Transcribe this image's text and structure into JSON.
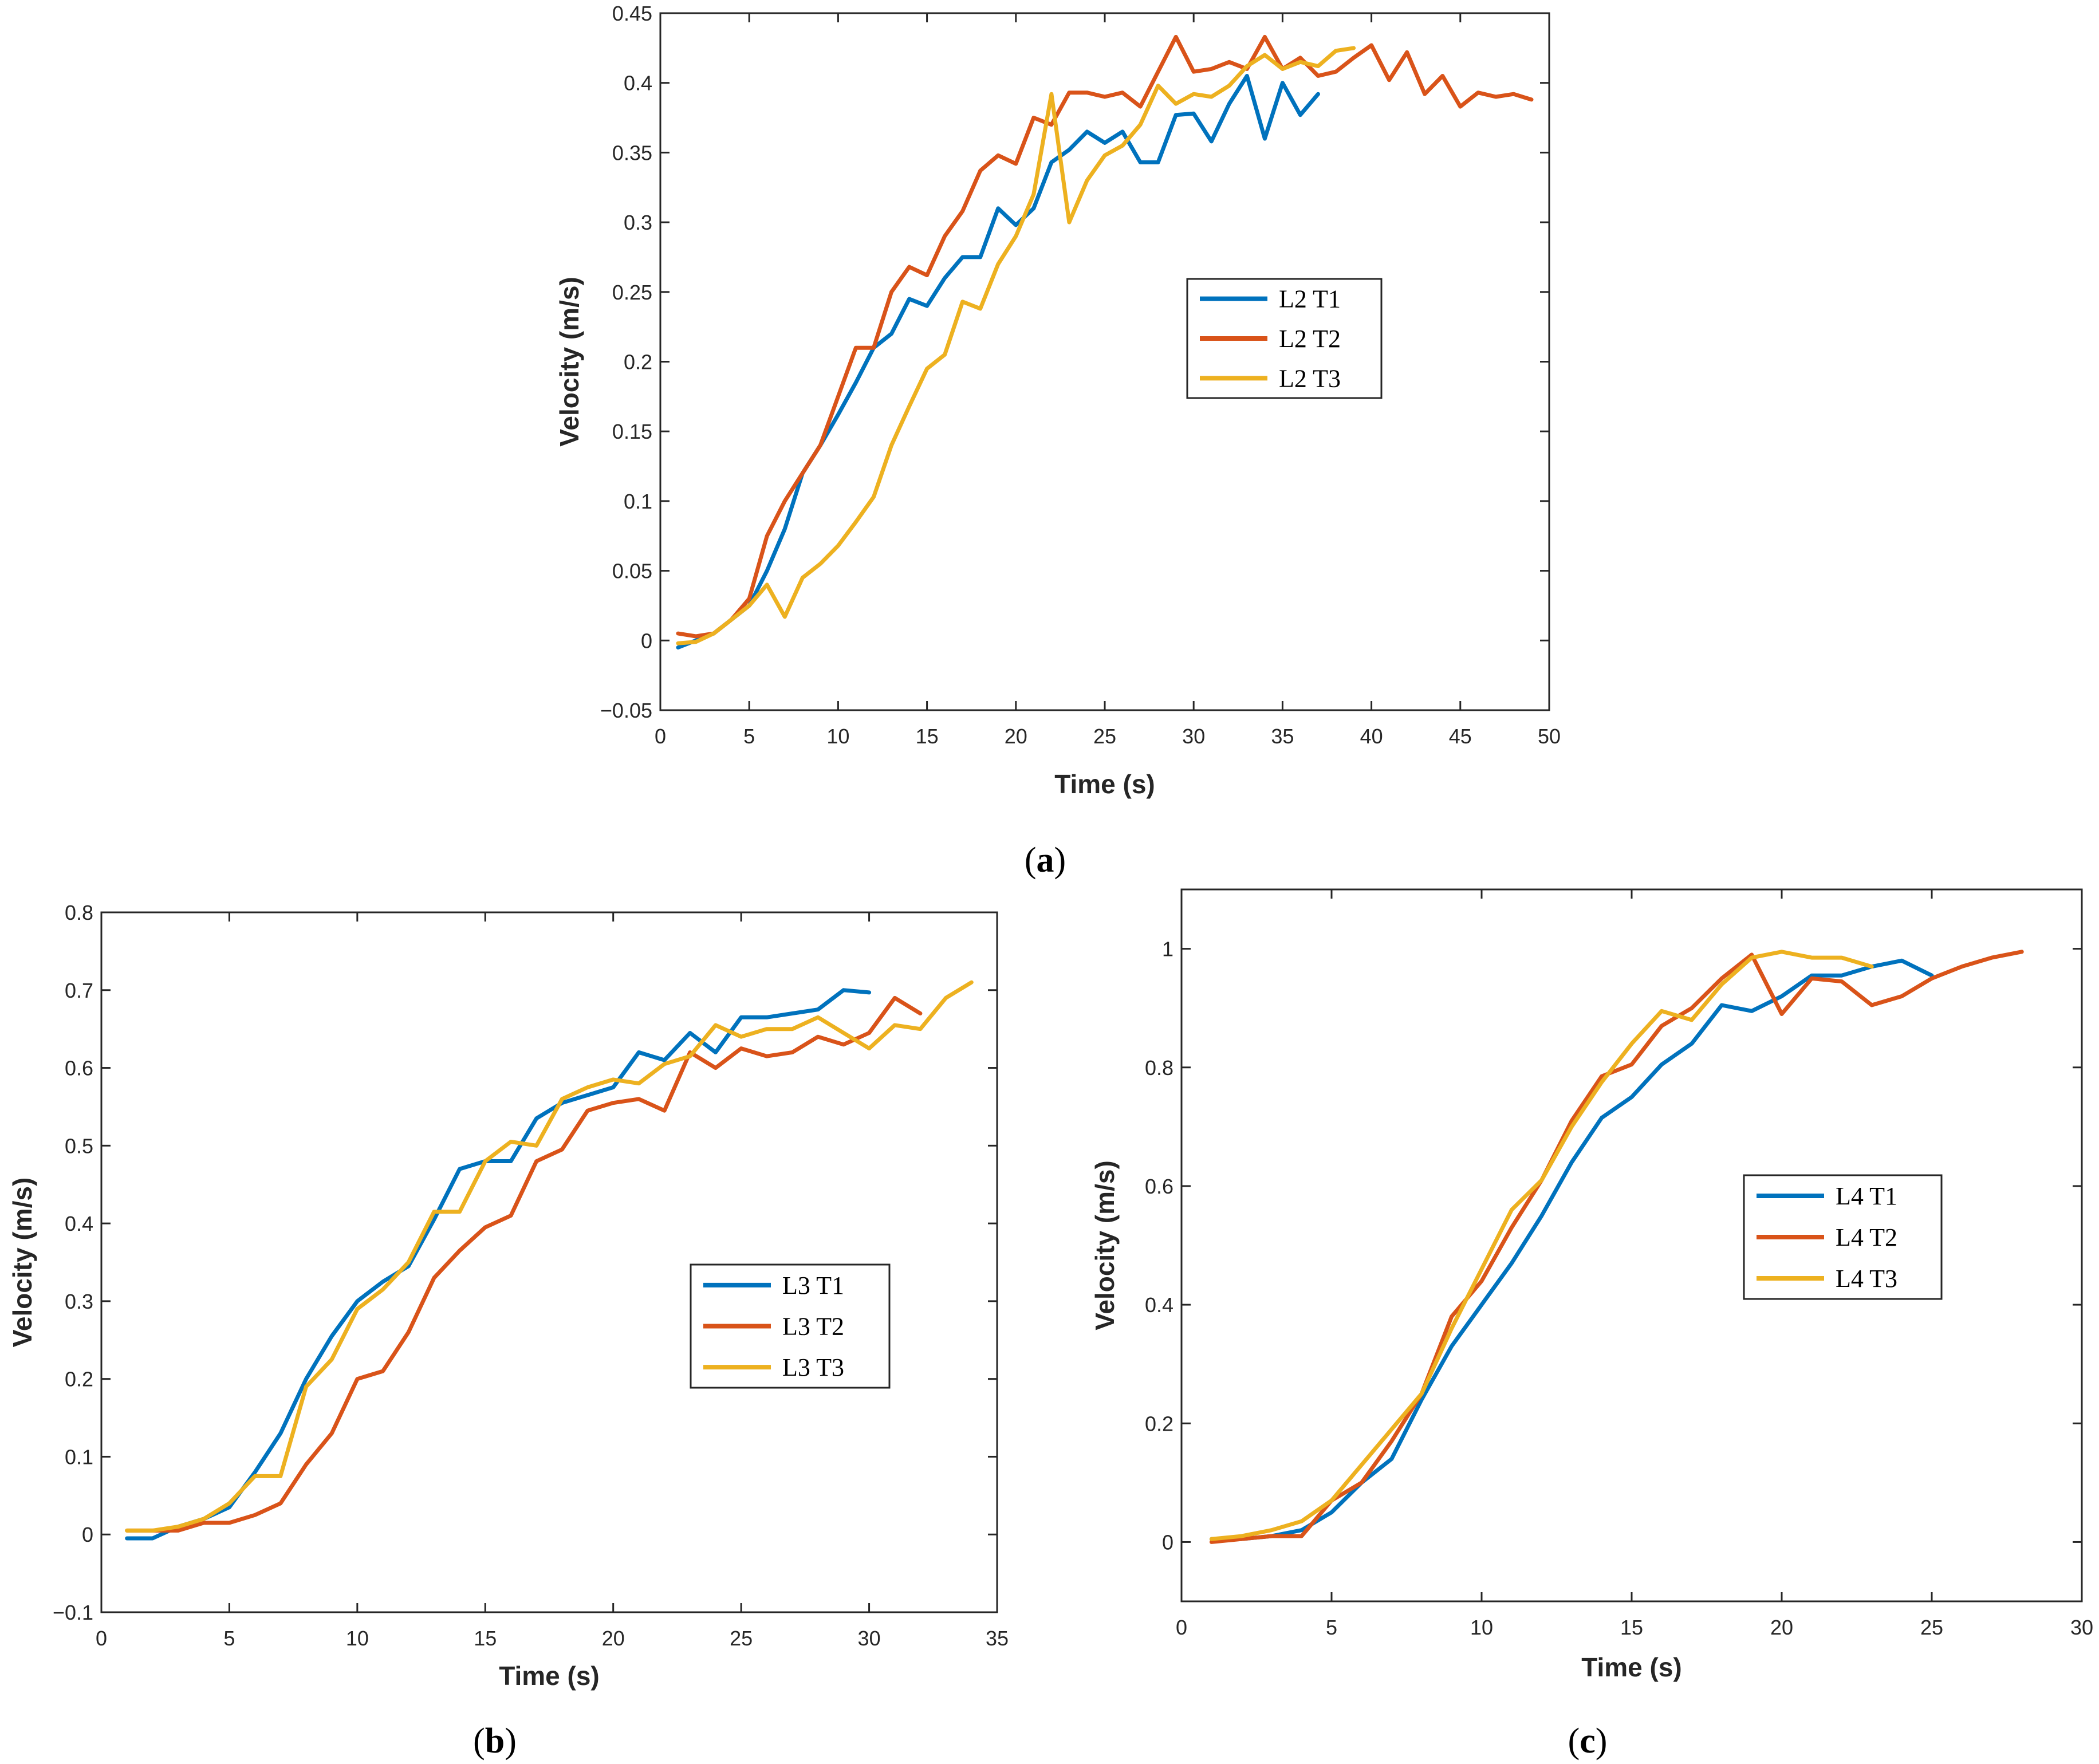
{
  "colors": {
    "T1": "#0072BD",
    "T2": "#D95319",
    "T3": "#EDB120",
    "axis": "#262626"
  },
  "chart_data": [
    {
      "panel": "a",
      "type": "line",
      "xlabel": "Time (s)",
      "ylabel": "Velocity (m/s)",
      "xlim": [
        0,
        50
      ],
      "ylim": [
        -0.05,
        0.45
      ],
      "xticks": [
        0,
        5,
        10,
        15,
        20,
        25,
        30,
        35,
        40,
        45,
        50
      ],
      "yticks": [
        -0.05,
        0,
        0.05,
        0.1,
        0.15,
        0.2,
        0.25,
        0.3,
        0.35,
        0.4,
        0.45
      ],
      "ytick_labels": [
        "−0.05",
        "0",
        "0.05",
        "0.1",
        "0.15",
        "0.2",
        "0.25",
        "0.3",
        "0.35",
        "0.4",
        "0.45"
      ],
      "legend_position": "center-right",
      "series": [
        {
          "name": "L2 T1",
          "color": "#0072BD",
          "x": [
            1,
            2,
            3,
            4,
            5,
            6,
            7,
            8,
            9,
            10,
            11,
            12,
            13,
            14,
            15,
            16,
            17,
            18,
            19,
            20,
            21,
            22,
            23,
            24,
            25,
            26,
            27,
            28,
            29,
            30,
            31,
            32,
            33,
            34,
            35,
            36,
            37
          ],
          "y": [
            -0.005,
            0.0,
            0.005,
            0.015,
            0.025,
            0.05,
            0.08,
            0.12,
            0.14,
            0.162,
            0.185,
            0.21,
            0.22,
            0.245,
            0.24,
            0.26,
            0.275,
            0.275,
            0.31,
            0.298,
            0.31,
            0.343,
            0.352,
            0.365,
            0.357,
            0.365,
            0.343,
            0.343,
            0.377,
            0.378,
            0.358,
            0.385,
            0.405,
            0.36,
            0.4,
            0.377,
            0.392
          ]
        },
        {
          "name": "L2 T2",
          "color": "#D95319",
          "x": [
            1,
            2,
            3,
            4,
            5,
            6,
            7,
            8,
            9,
            10,
            11,
            12,
            13,
            14,
            15,
            16,
            17,
            18,
            19,
            20,
            21,
            22,
            23,
            24,
            25,
            26,
            27,
            28,
            29,
            30,
            31,
            32,
            33,
            34,
            35,
            36,
            37,
            38,
            39,
            40,
            41,
            42,
            43,
            44,
            45,
            46,
            47,
            48,
            49
          ],
          "y": [
            0.005,
            0.003,
            0.005,
            0.015,
            0.03,
            0.075,
            0.1,
            0.12,
            0.14,
            0.175,
            0.21,
            0.21,
            0.25,
            0.268,
            0.262,
            0.29,
            0.308,
            0.337,
            0.348,
            0.342,
            0.375,
            0.37,
            0.393,
            0.393,
            0.39,
            0.393,
            0.383,
            0.408,
            0.433,
            0.408,
            0.41,
            0.415,
            0.41,
            0.433,
            0.41,
            0.418,
            0.405,
            0.408,
            0.418,
            0.427,
            0.402,
            0.422,
            0.392,
            0.405,
            0.383,
            0.393,
            0.39,
            0.392,
            0.388
          ]
        },
        {
          "name": "L2 T3",
          "color": "#EDB120",
          "x": [
            1,
            2,
            3,
            4,
            5,
            6,
            7,
            8,
            9,
            10,
            11,
            12,
            13,
            14,
            15,
            16,
            17,
            18,
            19,
            20,
            21,
            22,
            23,
            24,
            25,
            26,
            27,
            28,
            29,
            30,
            31,
            32,
            33,
            34,
            35,
            36,
            37,
            38,
            39
          ],
          "y": [
            -0.002,
            -0.001,
            0.005,
            0.015,
            0.025,
            0.04,
            0.017,
            0.045,
            0.055,
            0.068,
            0.085,
            0.103,
            0.14,
            0.168,
            0.195,
            0.205,
            0.243,
            0.238,
            0.27,
            0.29,
            0.32,
            0.392,
            0.3,
            0.33,
            0.348,
            0.355,
            0.37,
            0.398,
            0.385,
            0.392,
            0.39,
            0.398,
            0.412,
            0.42,
            0.41,
            0.415,
            0.412,
            0.423,
            0.425
          ]
        }
      ]
    },
    {
      "panel": "b",
      "type": "line",
      "xlabel": "Time (s)",
      "ylabel": "Velocity (m/s)",
      "xlim": [
        0,
        35
      ],
      "ylim": [
        -0.1,
        0.8
      ],
      "xticks": [
        0,
        5,
        10,
        15,
        20,
        25,
        30,
        35
      ],
      "yticks": [
        -0.1,
        0,
        0.1,
        0.2,
        0.3,
        0.4,
        0.5,
        0.6,
        0.7,
        0.8
      ],
      "ytick_labels": [
        "−0.1",
        "0",
        "0.1",
        "0.2",
        "0.3",
        "0.4",
        "0.5",
        "0.6",
        "0.7",
        "0.8"
      ],
      "legend_position": "center-right",
      "series": [
        {
          "name": "L3 T1",
          "color": "#0072BD",
          "x": [
            1,
            2,
            3,
            4,
            5,
            6,
            7,
            8,
            9,
            10,
            11,
            12,
            13,
            14,
            15,
            16,
            17,
            18,
            19,
            20,
            21,
            22,
            23,
            24,
            25,
            26,
            27,
            28,
            29,
            30
          ],
          "y": [
            -0.005,
            -0.005,
            0.01,
            0.02,
            0.035,
            0.08,
            0.13,
            0.2,
            0.255,
            0.3,
            0.325,
            0.345,
            0.405,
            0.47,
            0.48,
            0.48,
            0.535,
            0.555,
            0.565,
            0.575,
            0.62,
            0.61,
            0.645,
            0.62,
            0.665,
            0.665,
            0.67,
            0.675,
            0.7,
            0.697
          ]
        },
        {
          "name": "L3 T2",
          "color": "#D95319",
          "x": [
            1,
            2,
            3,
            4,
            5,
            6,
            7,
            8,
            9,
            10,
            11,
            12,
            13,
            14,
            15,
            16,
            17,
            18,
            19,
            20,
            21,
            22,
            23,
            24,
            25,
            26,
            27,
            28,
            29,
            30,
            31,
            32
          ],
          "y": [
            0.005,
            0.005,
            0.005,
            0.015,
            0.015,
            0.025,
            0.04,
            0.09,
            0.13,
            0.2,
            0.21,
            0.26,
            0.33,
            0.365,
            0.395,
            0.41,
            0.48,
            0.495,
            0.545,
            0.555,
            0.56,
            0.545,
            0.62,
            0.6,
            0.625,
            0.615,
            0.62,
            0.64,
            0.63,
            0.645,
            0.69,
            0.67
          ]
        },
        {
          "name": "L3 T3",
          "color": "#EDB120",
          "x": [
            1,
            2,
            3,
            4,
            5,
            6,
            7,
            8,
            9,
            10,
            11,
            12,
            13,
            14,
            15,
            16,
            17,
            18,
            19,
            20,
            21,
            22,
            23,
            24,
            25,
            26,
            27,
            28,
            29,
            30,
            31,
            32,
            33,
            34
          ],
          "y": [
            0.005,
            0.005,
            0.01,
            0.02,
            0.04,
            0.075,
            0.075,
            0.19,
            0.225,
            0.29,
            0.315,
            0.35,
            0.415,
            0.415,
            0.48,
            0.505,
            0.5,
            0.56,
            0.575,
            0.585,
            0.58,
            0.605,
            0.615,
            0.655,
            0.64,
            0.65,
            0.65,
            0.665,
            0.645,
            0.625,
            0.655,
            0.65,
            0.69,
            0.71
          ]
        }
      ]
    },
    {
      "panel": "c",
      "type": "line",
      "xlabel": "Time (s)",
      "ylabel": "Velocity (m/s)",
      "xlim": [
        0,
        30
      ],
      "ylim": [
        -0.1,
        1.1
      ],
      "xticks": [
        0,
        5,
        10,
        15,
        20,
        25,
        30
      ],
      "yticks": [
        0,
        0.2,
        0.4,
        0.6,
        0.8,
        1
      ],
      "ytick_labels": [
        "0",
        "0.2",
        "0.4",
        "0.6",
        "0.8",
        "1"
      ],
      "legend_position": "center-right",
      "series": [
        {
          "name": "L4 T1",
          "color": "#0072BD",
          "x": [
            1,
            2,
            3,
            4,
            5,
            6,
            7,
            8,
            9,
            10,
            11,
            12,
            13,
            14,
            15,
            16,
            17,
            18,
            19,
            20,
            21,
            22,
            23,
            24,
            25
          ],
          "y": [
            0.005,
            0.005,
            0.01,
            0.02,
            0.05,
            0.1,
            0.14,
            0.24,
            0.33,
            0.4,
            0.47,
            0.55,
            0.64,
            0.715,
            0.75,
            0.805,
            0.84,
            0.905,
            0.895,
            0.92,
            0.955,
            0.955,
            0.97,
            0.98,
            0.955
          ]
        },
        {
          "name": "L4 T2",
          "color": "#D95319",
          "x": [
            1,
            2,
            3,
            4,
            5,
            6,
            7,
            8,
            9,
            10,
            11,
            12,
            13,
            14,
            15,
            16,
            17,
            18,
            19,
            20,
            21,
            22,
            23,
            24,
            25,
            26,
            27,
            28
          ],
          "y": [
            0.0,
            0.005,
            0.01,
            0.01,
            0.07,
            0.1,
            0.17,
            0.25,
            0.38,
            0.44,
            0.53,
            0.61,
            0.71,
            0.785,
            0.805,
            0.87,
            0.9,
            0.95,
            0.99,
            0.89,
            0.95,
            0.945,
            0.905,
            0.92,
            0.95,
            0.97,
            0.985,
            0.995
          ]
        },
        {
          "name": "L4 T3",
          "color": "#EDB120",
          "x": [
            1,
            2,
            3,
            4,
            5,
            6,
            7,
            8,
            9,
            10,
            11,
            12,
            13,
            14,
            15,
            16,
            17,
            18,
            19,
            20,
            21,
            22,
            23
          ],
          "y": [
            0.005,
            0.01,
            0.02,
            0.035,
            0.07,
            0.13,
            0.19,
            0.25,
            0.36,
            0.46,
            0.56,
            0.61,
            0.7,
            0.775,
            0.84,
            0.895,
            0.88,
            0.94,
            0.985,
            0.995,
            0.985,
            0.985,
            0.97
          ]
        }
      ]
    }
  ],
  "panel_labels": {
    "a": "a",
    "b": "b",
    "c": "c"
  }
}
